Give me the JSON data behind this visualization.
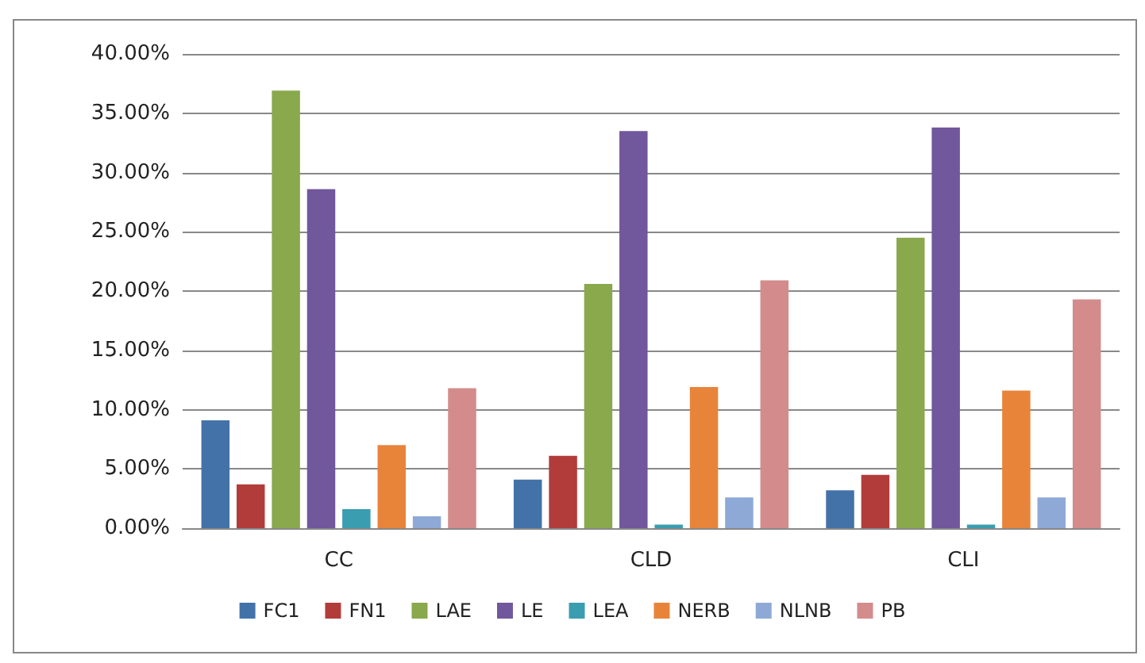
{
  "chart_data": {
    "type": "bar",
    "categories": [
      "CC",
      "CLD",
      "CLI"
    ],
    "series": [
      {
        "name": "FC1",
        "color": "#4372a8",
        "values": [
          9.1,
          4.1,
          3.2
        ]
      },
      {
        "name": "FN1",
        "color": "#b23c3a",
        "values": [
          3.7,
          6.1,
          4.5
        ]
      },
      {
        "name": "LAE",
        "color": "#8aa84c",
        "values": [
          36.9,
          20.6,
          24.5
        ]
      },
      {
        "name": "LE",
        "color": "#71579b",
        "values": [
          28.6,
          33.5,
          33.8
        ]
      },
      {
        "name": "LEA",
        "color": "#3a9db0",
        "values": [
          1.6,
          0.3,
          0.3
        ]
      },
      {
        "name": "NERB",
        "color": "#e8843a",
        "values": [
          7.0,
          11.9,
          11.6
        ]
      },
      {
        "name": "NLNB",
        "color": "#8ea9d6",
        "values": [
          1.0,
          2.6,
          2.6
        ]
      },
      {
        "name": "PB",
        "color": "#d38b8b",
        "values": [
          11.8,
          20.9,
          19.3
        ]
      }
    ],
    "ylim": [
      0,
      40
    ],
    "yticks": [
      {
        "value": 0,
        "label": "0.00%"
      },
      {
        "value": 5,
        "label": "5.00%"
      },
      {
        "value": 10,
        "label": "10.00%"
      },
      {
        "value": 15,
        "label": "15.00%"
      },
      {
        "value": 20,
        "label": "20.00%"
      },
      {
        "value": 25,
        "label": "25.00%"
      },
      {
        "value": 30,
        "label": "30.00%"
      },
      {
        "value": 35,
        "label": "35.00%"
      },
      {
        "value": 40,
        "label": "40.00%"
      }
    ],
    "grid": "y",
    "legend": "bottom"
  }
}
